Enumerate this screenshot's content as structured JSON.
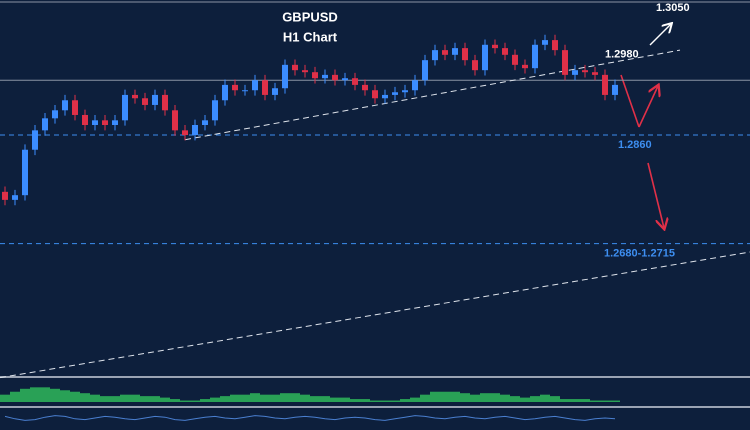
{
  "chart_data": {
    "type": "candlestick",
    "title": "GBPUSD",
    "subtitle": "H1 Chart",
    "ylim": [
      1.2501,
      1.3062
    ],
    "up_color": "#3b8cff",
    "down_color": "#e03048",
    "open": [
      1.2775,
      1.2763,
      1.277,
      1.2838,
      1.2867,
      1.2885,
      1.2897,
      1.2912,
      1.289,
      1.2875,
      1.2882,
      1.2875,
      1.2882,
      1.292,
      1.2915,
      1.2905,
      1.292,
      1.2897,
      1.2867,
      1.286,
      1.2875,
      1.2882,
      1.2912,
      1.2935,
      1.2927,
      1.2927,
      1.2942,
      1.292,
      1.293,
      1.2965,
      1.2957,
      1.2954,
      1.2945,
      1.295,
      1.2942,
      1.2945,
      1.2935,
      1.2927,
      1.2915,
      1.292,
      1.2924,
      1.2927,
      1.2942,
      1.2972,
      1.2987,
      1.298,
      1.299,
      1.2972,
      1.2957,
      1.2995,
      1.299,
      1.298,
      1.2965,
      1.296,
      1.2995,
      1.3002,
      1.2987,
      1.295,
      1.2957,
      1.2954,
      1.295,
      1.292
    ],
    "high": [
      1.2783,
      1.2778,
      1.2846,
      1.2875,
      1.2893,
      1.2905,
      1.292,
      1.292,
      1.2898,
      1.289,
      1.289,
      1.289,
      1.2928,
      1.2928,
      1.2923,
      1.2928,
      1.2928,
      1.2905,
      1.2875,
      1.2883,
      1.289,
      1.292,
      1.2943,
      1.2943,
      1.2935,
      1.295,
      1.295,
      1.2938,
      1.2973,
      1.2973,
      1.2965,
      1.2962,
      1.2958,
      1.2958,
      1.2953,
      1.2953,
      1.2943,
      1.2935,
      1.2928,
      1.2932,
      1.2935,
      1.295,
      1.298,
      1.2995,
      1.2995,
      1.2998,
      1.2998,
      1.298,
      1.3003,
      1.3003,
      1.2998,
      1.2988,
      1.2973,
      1.3003,
      1.301,
      1.301,
      1.2995,
      1.2965,
      1.2965,
      1.2962,
      1.2958,
      1.2943
    ],
    "low": [
      1.2755,
      1.2755,
      1.2762,
      1.283,
      1.2859,
      1.2877,
      1.2889,
      1.2882,
      1.2867,
      1.2867,
      1.2867,
      1.2867,
      1.2874,
      1.2907,
      1.2897,
      1.2897,
      1.2889,
      1.2859,
      1.2852,
      1.2852,
      1.2867,
      1.2874,
      1.2904,
      1.2919,
      1.2919,
      1.2919,
      1.2912,
      1.2912,
      1.2922,
      1.2949,
      1.2946,
      1.2937,
      1.2937,
      1.2934,
      1.2934,
      1.2927,
      1.2919,
      1.2907,
      1.2907,
      1.2912,
      1.2916,
      1.2919,
      1.2934,
      1.2964,
      1.2972,
      1.2972,
      1.2964,
      1.2949,
      1.2949,
      1.2982,
      1.2972,
      1.2957,
      1.2952,
      1.2952,
      1.2987,
      1.2979,
      1.2942,
      1.2942,
      1.2946,
      1.2942,
      1.2912,
      1.2912
    ],
    "close": [
      1.2763,
      1.277,
      1.2838,
      1.2867,
      1.2885,
      1.2897,
      1.2912,
      1.289,
      1.2875,
      1.2882,
      1.2875,
      1.2882,
      1.292,
      1.2915,
      1.2905,
      1.292,
      1.2897,
      1.2867,
      1.286,
      1.2875,
      1.2882,
      1.2912,
      1.2935,
      1.2927,
      1.2927,
      1.2942,
      1.292,
      1.293,
      1.2965,
      1.2957,
      1.2954,
      1.2945,
      1.295,
      1.2942,
      1.2945,
      1.2935,
      1.2927,
      1.2915,
      1.292,
      1.2924,
      1.2927,
      1.2942,
      1.2972,
      1.2987,
      1.298,
      1.299,
      1.2972,
      1.2957,
      1.2995,
      1.299,
      1.298,
      1.2965,
      1.296,
      1.2995,
      1.3002,
      1.2987,
      1.295,
      1.2957,
      1.2954,
      1.295,
      1.292,
      1.2935
    ],
    "reference_line": {
      "value": 1.2942,
      "color": "#8a93a3"
    },
    "levels": [
      {
        "value": 1.305,
        "label": "1.3050",
        "color": "#ffffff"
      },
      {
        "value": 1.298,
        "label": "1.2980",
        "color": "#ffffff"
      },
      {
        "value": 1.286,
        "label": "1.2860",
        "color": "#3d8ef0",
        "line": "dashed"
      },
      {
        "value": [
          1.268,
          1.2715
        ],
        "label": "1.2680-1.2715",
        "color": "#3d8ef0",
        "line": "dashed"
      }
    ],
    "trendlines": [
      {
        "x": [
          18,
          67.5
        ],
        "y": [
          1.2853,
          1.2987
        ]
      },
      {
        "x": [
          -0.5,
          74.5
        ],
        "y": [
          1.2497,
          1.2685
        ]
      }
    ],
    "oscillator": {
      "color": "#2fb85a",
      "ylim": [
        0,
        1.5
      ],
      "values": [
        0.5,
        0.7,
        0.9,
        1.0,
        1.0,
        0.9,
        0.8,
        0.7,
        0.6,
        0.5,
        0.4,
        0.4,
        0.5,
        0.5,
        0.4,
        0.4,
        0.3,
        0.2,
        0.1,
        0.1,
        0.2,
        0.3,
        0.4,
        0.5,
        0.5,
        0.6,
        0.5,
        0.5,
        0.6,
        0.6,
        0.5,
        0.4,
        0.4,
        0.3,
        0.3,
        0.2,
        0.2,
        0.1,
        0.1,
        0.1,
        0.2,
        0.3,
        0.5,
        0.7,
        0.7,
        0.7,
        0.6,
        0.5,
        0.6,
        0.6,
        0.5,
        0.4,
        0.3,
        0.4,
        0.5,
        0.4,
        0.2,
        0.2,
        0.2,
        0.1,
        0.1,
        0.1
      ]
    },
    "stochastic": {
      "color": "#4a7fd0",
      "ylim": [
        0,
        100
      ],
      "values": [
        60,
        45,
        35,
        40,
        55,
        65,
        60,
        45,
        40,
        50,
        60,
        55,
        45,
        40,
        50,
        60,
        55,
        40,
        35,
        45,
        55,
        60,
        50,
        45,
        55,
        65,
        60,
        50,
        45,
        55,
        60,
        55,
        45,
        40,
        50,
        55,
        50,
        40,
        35,
        45,
        55,
        65,
        60,
        50,
        45,
        55,
        60,
        50,
        45,
        55,
        60,
        50,
        40,
        45,
        55,
        60,
        50,
        40,
        35,
        45,
        50,
        45
      ]
    }
  }
}
